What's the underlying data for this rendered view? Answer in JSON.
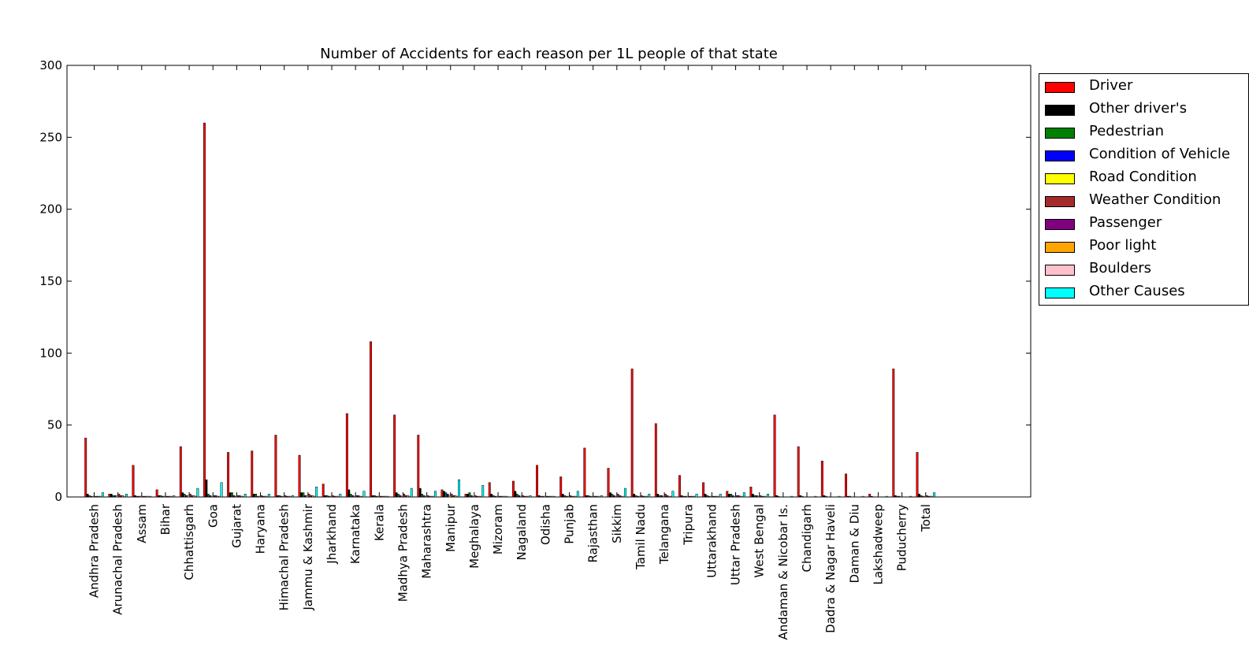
{
  "chart_data": {
    "type": "bar",
    "title": "Number of Accidents for each reason per 1L people of that state",
    "xlabel": "",
    "ylabel": "",
    "ylim": [
      0,
      300
    ],
    "yticks": [
      0,
      50,
      100,
      150,
      200,
      250,
      300
    ],
    "grid": false,
    "legend_position": "outside-right",
    "categories": [
      "Andhra Pradesh",
      "Arunachal Pradesh",
      "Assam",
      "Bihar",
      "Chhattisgarh",
      "Goa",
      "Gujarat",
      "Haryana",
      "Himachal Pradesh",
      "Jammu & Kashmir",
      "Jharkhand",
      "Karnataka",
      "Kerala",
      "Madhya Pradesh",
      "Maharashtra",
      "Manipur",
      "Meghalaya",
      "Mizoram",
      "Nagaland",
      "Odisha",
      "Punjab",
      "Rajasthan",
      "Sikkim",
      "Tamil Nadu",
      "Telangana",
      "Tripura",
      "Uttarakhand",
      "Uttar Pradesh",
      "West Bengal",
      "Andaman & Nicobar Is.",
      "Chandigarh",
      "Dadra & Nagar Haveli",
      "Daman & Diu",
      "Lakshadweep",
      "Puducherry",
      "Total"
    ],
    "series": [
      {
        "name": "Driver",
        "color": "#ff0000",
        "values": [
          41,
          2,
          22,
          5,
          35,
          260,
          31,
          32,
          43,
          29,
          9,
          58,
          108,
          57,
          43,
          5,
          2,
          10,
          11,
          22,
          14,
          34,
          20,
          89,
          51,
          15,
          10,
          4,
          7,
          57,
          35,
          25,
          16,
          2,
          89,
          31
        ]
      },
      {
        "name": "Other driver's",
        "color": "#000000",
        "values": [
          2,
          2,
          1,
          1,
          3,
          12,
          3,
          2,
          1,
          3,
          1,
          5,
          1,
          3,
          6,
          4,
          2,
          2,
          4,
          1,
          2,
          1,
          3,
          2,
          2,
          1,
          2,
          2,
          2,
          1,
          1,
          1,
          0.5,
          0.5,
          1,
          2
        ]
      },
      {
        "name": "Pedestrian",
        "color": "#008000",
        "values": [
          1,
          1,
          0.5,
          1,
          2,
          2,
          3,
          2,
          1,
          3,
          1,
          2,
          1,
          2,
          2,
          3,
          3,
          1,
          2,
          0.5,
          1,
          1,
          2,
          1,
          1,
          0.5,
          1,
          2,
          1,
          0.5,
          0.5,
          0.5,
          0.5,
          0,
          0.5,
          1
        ]
      },
      {
        "name": "Condition of Vehicle",
        "color": "#0000ff",
        "values": [
          0.5,
          1,
          0.5,
          0.5,
          1,
          1,
          1,
          0.5,
          0.5,
          1,
          0.5,
          1,
          0.5,
          1,
          1,
          2,
          1,
          0.5,
          1,
          0.5,
          0.5,
          0.5,
          1,
          0.5,
          1,
          0.5,
          0.5,
          1,
          1,
          0,
          0,
          0,
          0,
          0,
          0.5,
          0.5
        ]
      },
      {
        "name": "Road Condition",
        "color": "#ffff00",
        "values": [
          0.5,
          1,
          0.5,
          0.5,
          1,
          0.5,
          0.5,
          0.5,
          0.5,
          1,
          0.5,
          0.5,
          0.5,
          0.5,
          0.5,
          1,
          0.5,
          0.5,
          0.5,
          0.5,
          0.5,
          0.5,
          0.5,
          0.5,
          0.5,
          0.5,
          0.5,
          0.5,
          0.5,
          0,
          0,
          0,
          0,
          0,
          0,
          0.5
        ]
      },
      {
        "name": "Weather Condition",
        "color": "#a52a2a",
        "values": [
          0.5,
          2,
          0.5,
          0.5,
          2,
          1,
          1,
          1,
          1,
          2,
          1,
          1,
          0.5,
          2,
          1,
          2,
          1,
          0.5,
          1,
          0.5,
          1,
          0.5,
          2,
          1,
          2,
          0.5,
          0.5,
          1,
          1,
          0,
          0,
          0,
          0,
          0,
          0,
          1
        ]
      },
      {
        "name": "Passenger",
        "color": "#800080",
        "values": [
          0.5,
          1,
          0.5,
          0.5,
          1,
          1,
          1,
          0.5,
          0.5,
          1,
          0.5,
          1,
          0.5,
          1,
          0.5,
          1,
          0.5,
          0.5,
          0.5,
          0.5,
          0.5,
          0.5,
          1,
          0.5,
          1,
          0.5,
          0.5,
          1,
          0.5,
          0,
          0,
          0,
          0,
          0,
          0,
          0.5
        ]
      },
      {
        "name": "Poor light",
        "color": "#ffa500",
        "values": [
          0.5,
          1,
          0.5,
          0.5,
          1,
          0.5,
          0.5,
          0.5,
          0.5,
          1,
          0.5,
          0.5,
          0.5,
          1,
          0.5,
          1,
          0.5,
          0.5,
          0.5,
          0.5,
          0.5,
          0.5,
          0.5,
          0.5,
          0.5,
          0.5,
          0.5,
          0.5,
          0.5,
          0,
          0,
          0,
          0,
          0,
          0,
          0.5
        ]
      },
      {
        "name": "Boulders",
        "color": "#ffc0cb",
        "values": [
          0.5,
          0.5,
          0.5,
          0.5,
          0.5,
          0.5,
          0.5,
          0.5,
          0.5,
          0.5,
          0.5,
          0.5,
          0.5,
          0.5,
          0.5,
          0.5,
          0.5,
          0.5,
          0.5,
          0.5,
          0.5,
          0.5,
          0.5,
          0.5,
          0.5,
          0.5,
          0.5,
          0.5,
          0.5,
          0,
          0,
          0,
          0,
          0,
          0,
          0.5
        ]
      },
      {
        "name": "Other Causes",
        "color": "#00ffff",
        "values": [
          3,
          2,
          0.5,
          1,
          6,
          10,
          2,
          2,
          1,
          7,
          2,
          4,
          0.5,
          6,
          4,
          12,
          8,
          0.5,
          1,
          0.5,
          4,
          1,
          6,
          2,
          4,
          2,
          2,
          3,
          2,
          0.5,
          0.5,
          0.5,
          0.5,
          0.5,
          0.5,
          3
        ]
      }
    ]
  }
}
